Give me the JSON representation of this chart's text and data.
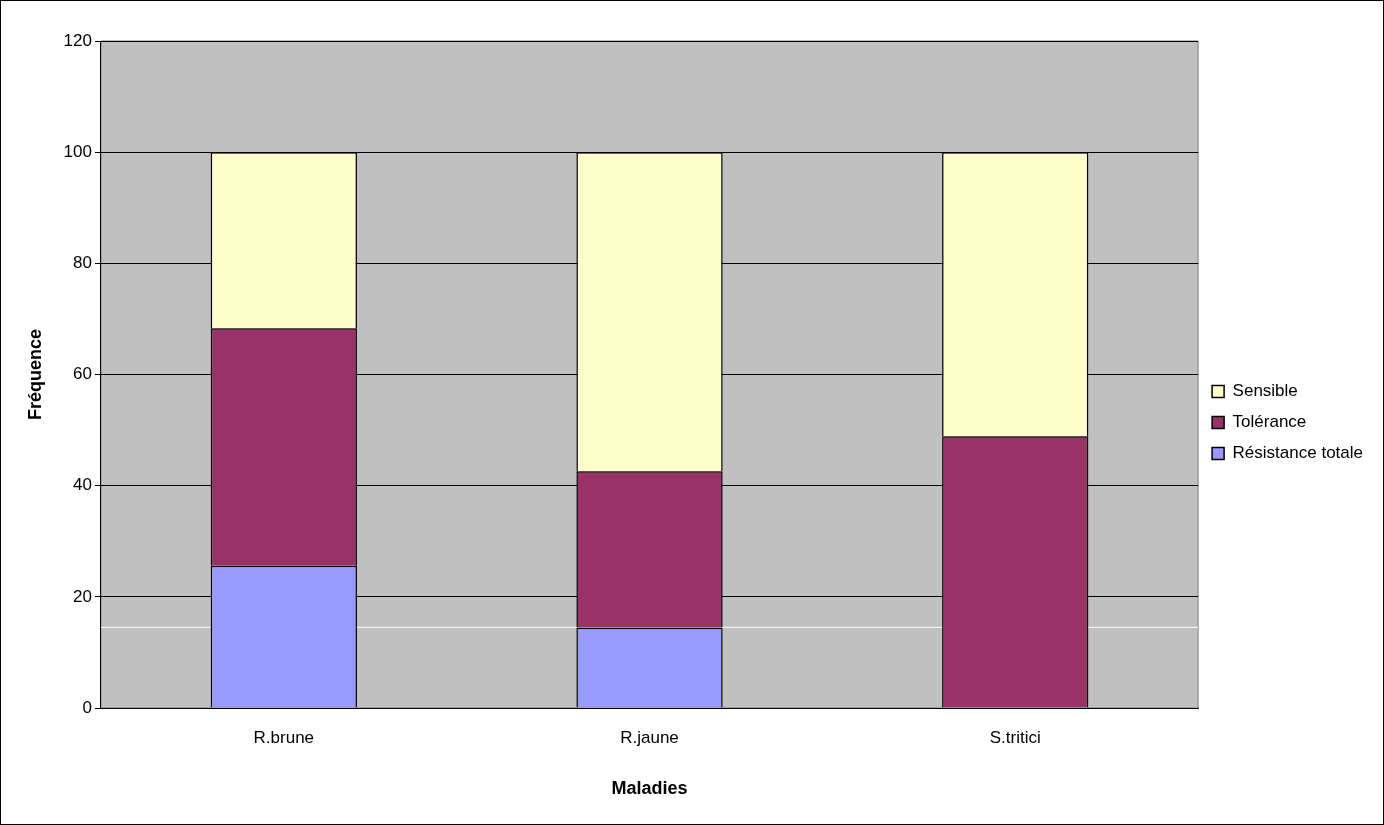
{
  "chart_data": {
    "type": "bar",
    "stacked": true,
    "xlabel": "Maladies",
    "ylabel": "Fréquence",
    "categories": [
      "R.brune",
      "R.jaune",
      "S.tritici"
    ],
    "series": [
      {
        "name": "Résistance totale",
        "color": "#9999ff",
        "values": [
          25.6,
          14.5,
          0
        ]
      },
      {
        "name": "Tolérance",
        "color": "#993366",
        "values": [
          42.7,
          28.1,
          48.9
        ]
      },
      {
        "name": "Sensible",
        "color": "#ffffcc",
        "values": [
          31.7,
          57.4,
          51.1
        ]
      }
    ],
    "ylim": [
      0,
      120
    ],
    "yticks": [
      0,
      20,
      40,
      60,
      80,
      100,
      120
    ],
    "grid": "y",
    "legend": "right",
    "ref_lines": [
      {
        "axis": "y",
        "value": 14.5,
        "color": "#ffffff"
      }
    ]
  }
}
